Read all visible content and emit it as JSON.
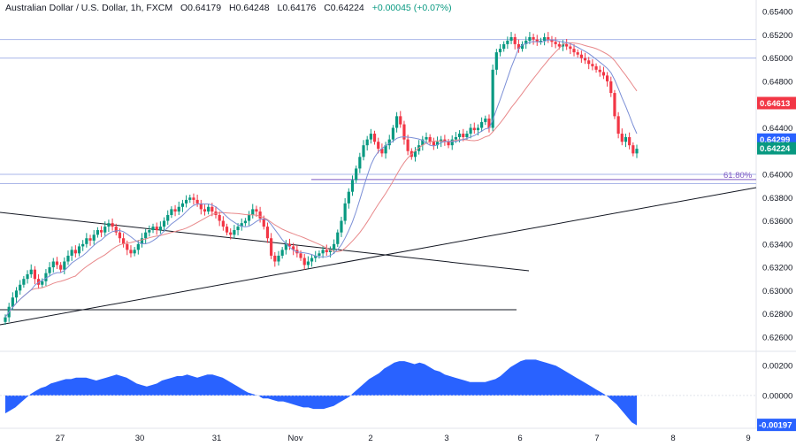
{
  "header": {
    "symbol": "Australian Dollar / U.S. Dollar, 1h, FXCM",
    "open": "O0.64179",
    "high": "H0.64248",
    "low": "L0.64176",
    "close": "C0.64224",
    "change": "+0.00045 (+0.07%)"
  },
  "colors": {
    "up": "#089981",
    "down": "#f23645",
    "ma_fast": "#7b8fd6",
    "ma_slow": "#e8888a",
    "histogram": "#2962ff",
    "level_line": "#aab6e8",
    "fib_line": "#7e57c2"
  },
  "chart_data": {
    "type": "line",
    "price_axis": {
      "ticks": [
        "0.65400",
        "0.65200",
        "0.65000",
        "0.64800",
        "0.64600",
        "0.64400",
        "0.64200",
        "0.64000",
        "0.63800",
        "0.63600",
        "0.63400",
        "0.63200",
        "0.63000",
        "0.62800",
        "0.62600"
      ],
      "ylim": [
        0.625,
        0.655
      ]
    },
    "x_axis": {
      "labels": [
        "27",
        "30",
        "31",
        "Nov",
        "2",
        "3",
        "6",
        "7",
        "8",
        "9"
      ]
    },
    "price_tags": [
      {
        "value": "0.64613",
        "color": "#f23645"
      },
      {
        "value": "0.64299",
        "color": "#2962ff"
      },
      {
        "value": "0.64224",
        "color": "#089981"
      }
    ],
    "fib_label": "61.80%",
    "levels": [
      0.6516,
      0.65,
      0.64,
      0.6392
    ],
    "close_series": [
      0.6277,
      0.6286,
      0.6294,
      0.63,
      0.6305,
      0.631,
      0.6314,
      0.6318,
      0.631,
      0.6305,
      0.6308,
      0.6315,
      0.632,
      0.6325,
      0.6322,
      0.6318,
      0.6325,
      0.633,
      0.6335,
      0.6332,
      0.6338,
      0.634,
      0.6345,
      0.6343,
      0.6348,
      0.6352,
      0.635,
      0.6355,
      0.6358,
      0.6355,
      0.635,
      0.6345,
      0.634,
      0.6335,
      0.6332,
      0.6335,
      0.634,
      0.6345,
      0.635,
      0.6352,
      0.6355,
      0.6352,
      0.6355,
      0.636,
      0.6365,
      0.637,
      0.6368,
      0.6372,
      0.6375,
      0.6378,
      0.638,
      0.6378,
      0.6375,
      0.637,
      0.6368,
      0.6372,
      0.6368,
      0.6365,
      0.636,
      0.6355,
      0.635,
      0.6348,
      0.6352,
      0.6355,
      0.6358,
      0.636,
      0.6365,
      0.637,
      0.6368,
      0.6362,
      0.6355,
      0.6345,
      0.633,
      0.6325,
      0.633,
      0.6335,
      0.634,
      0.6338,
      0.6335,
      0.6332,
      0.6328,
      0.6322,
      0.6325,
      0.6328,
      0.633,
      0.6332,
      0.6335,
      0.6333,
      0.6335,
      0.634,
      0.635,
      0.636,
      0.6375,
      0.6385,
      0.6395,
      0.6405,
      0.6415,
      0.6425,
      0.643,
      0.6435,
      0.6428,
      0.6422,
      0.6418,
      0.6425,
      0.643,
      0.644,
      0.645,
      0.6443,
      0.643,
      0.642,
      0.6415,
      0.642,
      0.6425,
      0.643,
      0.6432,
      0.6428,
      0.6425,
      0.6428,
      0.643,
      0.6428,
      0.6425,
      0.643,
      0.6432,
      0.6435,
      0.6432,
      0.6435,
      0.644,
      0.6438,
      0.644,
      0.6445,
      0.6448,
      0.644,
      0.649,
      0.6505,
      0.6508,
      0.6512,
      0.6515,
      0.6518,
      0.6512,
      0.6508,
      0.6512,
      0.6515,
      0.6518,
      0.6516,
      0.6514,
      0.6515,
      0.6518,
      0.6516,
      0.6514,
      0.6512,
      0.651,
      0.6512,
      0.651,
      0.6508,
      0.6505,
      0.6503,
      0.65,
      0.6498,
      0.6495,
      0.6493,
      0.649,
      0.6488,
      0.6485,
      0.648,
      0.647,
      0.645,
      0.6435,
      0.6428,
      0.6432,
      0.6425,
      0.6418,
      0.6422
    ],
    "histogram": {
      "ticks": [
        "0.00200",
        "0.00000",
        "-0.00197"
      ],
      "ylim": [
        -0.0022,
        0.0029
      ],
      "values": [
        -0.0012,
        -0.001,
        -0.0008,
        -0.0005,
        -0.0002,
        0.0001,
        0.0003,
        0.0005,
        0.0006,
        0.0008,
        0.0009,
        0.001,
        0.0011,
        0.0011,
        0.0012,
        0.0012,
        0.0012,
        0.0011,
        0.001,
        0.0011,
        0.0012,
        0.0013,
        0.0014,
        0.0013,
        0.0012,
        0.001,
        0.0008,
        0.0007,
        0.0006,
        0.0007,
        0.0008,
        0.001,
        0.0011,
        0.0012,
        0.0013,
        0.0013,
        0.0014,
        0.0013,
        0.0012,
        0.0013,
        0.0014,
        0.0014,
        0.0013,
        0.0012,
        0.001,
        0.0008,
        0.0006,
        0.0004,
        0.0002,
        0.0001,
        0.0,
        -0.0002,
        -0.0002,
        -0.0003,
        -0.0004,
        -0.0004,
        -0.0005,
        -0.0006,
        -0.0007,
        -0.0008,
        -0.0008,
        -0.0009,
        -0.0009,
        -0.0009,
        -0.0008,
        -0.0007,
        -0.0005,
        -0.0003,
        -0.0001,
        0.0002,
        0.0005,
        0.0008,
        0.0011,
        0.0013,
        0.0015,
        0.0018,
        0.002,
        0.0022,
        0.0023,
        0.0023,
        0.0022,
        0.0021,
        0.0022,
        0.0021,
        0.0019,
        0.0017,
        0.0016,
        0.0014,
        0.0013,
        0.0012,
        0.0011,
        0.001,
        0.0009,
        0.0009,
        0.0009,
        0.0009,
        0.001,
        0.0011,
        0.0013,
        0.0016,
        0.0019,
        0.0021,
        0.0023,
        0.0024,
        0.0024,
        0.0024,
        0.0023,
        0.0022,
        0.0021,
        0.002,
        0.0018,
        0.0016,
        0.0014,
        0.0012,
        0.001,
        0.0008,
        0.0006,
        0.0004,
        0.0002,
        0.0,
        -0.0003,
        -0.0006,
        -0.001,
        -0.0014,
        -0.0018,
        -0.002
      ]
    }
  }
}
